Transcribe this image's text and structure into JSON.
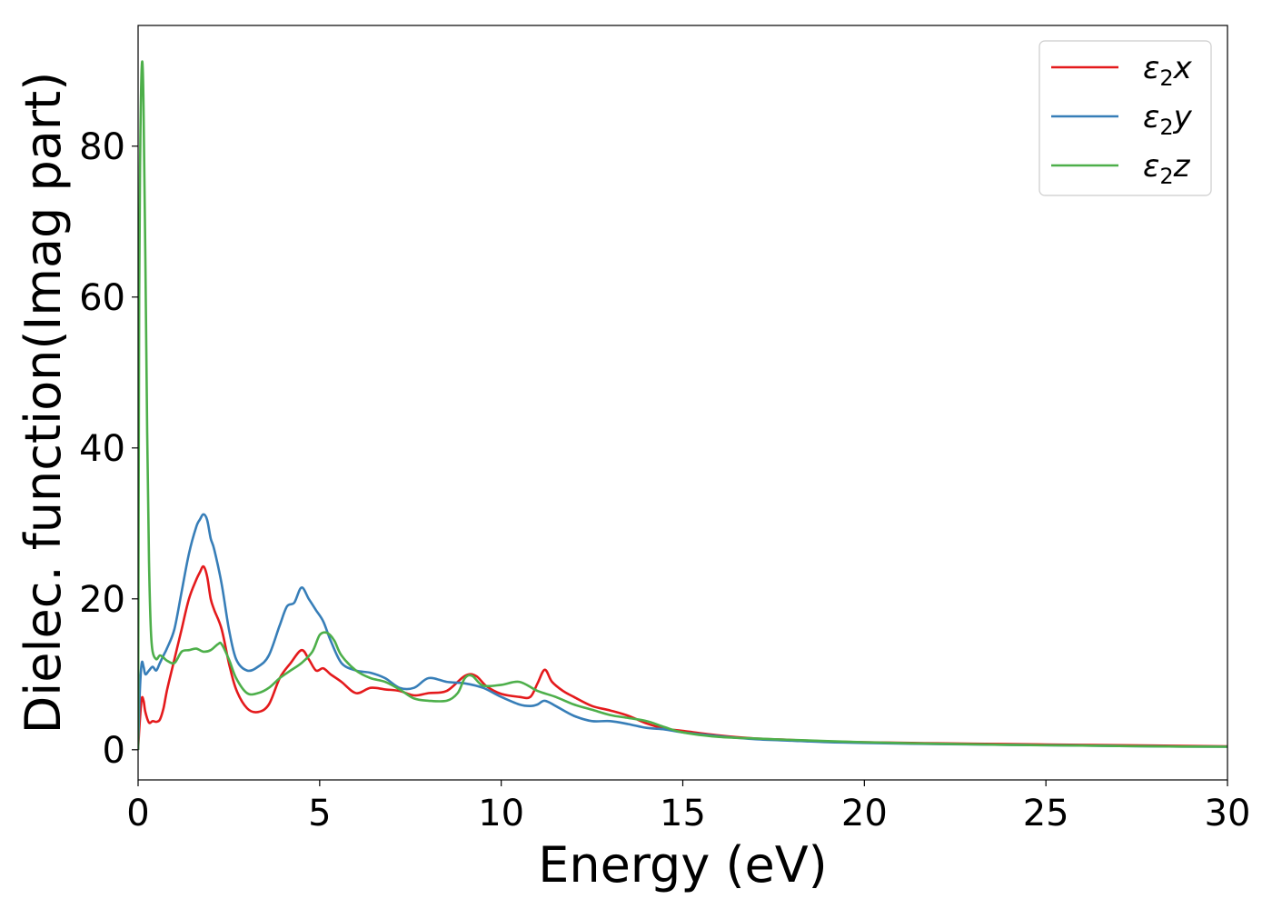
{
  "chart_data": {
    "type": "line",
    "xlabel": "Energy (eV)",
    "ylabel": "Dielec. function(Imag part)",
    "xlim": [
      0,
      30
    ],
    "ylim": [
      -4,
      96
    ],
    "xticks": [
      0,
      5,
      10,
      15,
      20,
      25,
      30
    ],
    "yticks": [
      0,
      20,
      40,
      60,
      80
    ],
    "grid": false,
    "legend_position": "top-right",
    "series": [
      {
        "name": "ε₂x",
        "legend": {
          "base": "ε",
          "sub": "2",
          "suffix": "x"
        },
        "color": "#e41a1c",
        "x": [
          0,
          0.05,
          0.1,
          0.15,
          0.2,
          0.3,
          0.4,
          0.5,
          0.6,
          0.7,
          0.8,
          1.0,
          1.2,
          1.4,
          1.6,
          1.7,
          1.8,
          1.9,
          2.0,
          2.1,
          2.3,
          2.5,
          2.7,
          3.0,
          3.3,
          3.6,
          3.9,
          4.2,
          4.5,
          4.7,
          4.9,
          5.1,
          5.3,
          5.6,
          6.0,
          6.4,
          6.8,
          7.2,
          7.6,
          8.0,
          8.5,
          9.0,
          9.3,
          9.6,
          10.0,
          10.5,
          10.8,
          11.0,
          11.2,
          11.4,
          11.7,
          12.0,
          12.5,
          13.0,
          13.5,
          14.0,
          14.5,
          15.0,
          16.0,
          17.0,
          18.0,
          19.0,
          20.0,
          22.0,
          24.0,
          26.0,
          28.0,
          30.0
        ],
        "y": [
          0,
          4,
          6.8,
          6.5,
          5,
          3.6,
          3.8,
          3.7,
          4,
          5.5,
          8,
          12,
          16,
          20,
          22.5,
          23.5,
          24.3,
          23,
          20,
          18.5,
          16,
          11.5,
          8,
          5.5,
          5,
          6,
          9.5,
          11.5,
          13.2,
          12,
          10.5,
          10.8,
          10,
          9,
          7.5,
          8.2,
          8,
          7.8,
          7.2,
          7.5,
          7.8,
          9.8,
          9.8,
          8.4,
          7.4,
          7,
          7,
          8.8,
          10.6,
          9,
          7.8,
          7,
          5.8,
          5.2,
          4.5,
          3.5,
          2.8,
          2.5,
          1.9,
          1.5,
          1.3,
          1.1,
          1.0,
          0.85,
          0.75,
          0.65,
          0.55,
          0.45
        ]
      },
      {
        "name": "ε₂y",
        "legend": {
          "base": "ε",
          "sub": "2",
          "suffix": "y"
        },
        "color": "#377eb8",
        "x": [
          0,
          0.05,
          0.1,
          0.15,
          0.2,
          0.3,
          0.4,
          0.5,
          0.6,
          0.7,
          0.8,
          1.0,
          1.2,
          1.4,
          1.6,
          1.7,
          1.8,
          1.9,
          2.0,
          2.1,
          2.3,
          2.5,
          2.7,
          3.0,
          3.3,
          3.6,
          3.9,
          4.1,
          4.3,
          4.5,
          4.7,
          4.9,
          5.1,
          5.3,
          5.6,
          6.0,
          6.4,
          6.8,
          7.2,
          7.6,
          8.0,
          8.5,
          9.0,
          9.5,
          10.0,
          10.5,
          10.8,
          11.0,
          11.2,
          11.5,
          12.0,
          12.5,
          13.0,
          13.5,
          14.0,
          14.5,
          15.0,
          16.0,
          17.0,
          18.0,
          19.0,
          20.0,
          22.0,
          24.0,
          26.0,
          28.0,
          30.0
        ],
        "y": [
          0,
          8,
          11.5,
          11,
          10,
          10.5,
          11,
          10.5,
          11.5,
          12.5,
          13.5,
          16,
          21,
          26,
          29.5,
          30.5,
          31.2,
          30.5,
          28,
          26.5,
          22,
          16,
          12,
          10.5,
          11,
          12.5,
          16.5,
          19,
          19.5,
          21.5,
          20,
          18.5,
          17,
          14.5,
          11.5,
          10.5,
          10.2,
          9.5,
          8.2,
          8.2,
          9.5,
          9,
          8.8,
          8.2,
          7,
          6,
          5.8,
          6,
          6.5,
          5.8,
          4.5,
          3.8,
          3.8,
          3.4,
          2.9,
          2.7,
          2.3,
          1.8,
          1.4,
          1.2,
          1.0,
          0.9,
          0.75,
          0.65,
          0.55,
          0.45,
          0.4
        ]
      },
      {
        "name": "ε₂z",
        "legend": {
          "base": "ε",
          "sub": "2",
          "suffix": "z"
        },
        "color": "#4daf4a",
        "x": [
          0,
          0.03,
          0.06,
          0.09,
          0.12,
          0.15,
          0.2,
          0.25,
          0.3,
          0.35,
          0.4,
          0.5,
          0.6,
          0.7,
          0.8,
          1.0,
          1.2,
          1.4,
          1.6,
          1.8,
          2.0,
          2.2,
          2.3,
          2.5,
          2.7,
          3.0,
          3.3,
          3.6,
          3.9,
          4.2,
          4.5,
          4.8,
          5.0,
          5.2,
          5.4,
          5.6,
          6.0,
          6.4,
          6.8,
          7.2,
          7.6,
          8.0,
          8.5,
          8.8,
          9.0,
          9.2,
          9.5,
          10.0,
          10.5,
          11.0,
          11.5,
          12.0,
          12.5,
          13.0,
          13.5,
          14.0,
          14.5,
          15.0,
          16.0,
          17.0,
          18.0,
          19.0,
          20.0,
          22.0,
          24.0,
          26.0,
          28.0,
          30.0
        ],
        "y": [
          0,
          60,
          80,
          89,
          91,
          85,
          65,
          42,
          25,
          16,
          13,
          12,
          12.5,
          12.2,
          11.8,
          11.5,
          13,
          13.2,
          13.4,
          13,
          13.2,
          14,
          14,
          12,
          9.5,
          7.5,
          7.5,
          8.2,
          9.5,
          10.5,
          11.5,
          13,
          15.2,
          15.5,
          14.5,
          12.5,
          10.5,
          9.5,
          9,
          8,
          6.8,
          6.5,
          6.5,
          7.5,
          9.5,
          9.8,
          8.5,
          8.6,
          9,
          7.8,
          7,
          6,
          5.3,
          4.6,
          4.2,
          3.8,
          3,
          2.3,
          1.7,
          1.5,
          1.3,
          1.15,
          1.0,
          0.8,
          0.65,
          0.55,
          0.45,
          0.4
        ]
      }
    ]
  }
}
